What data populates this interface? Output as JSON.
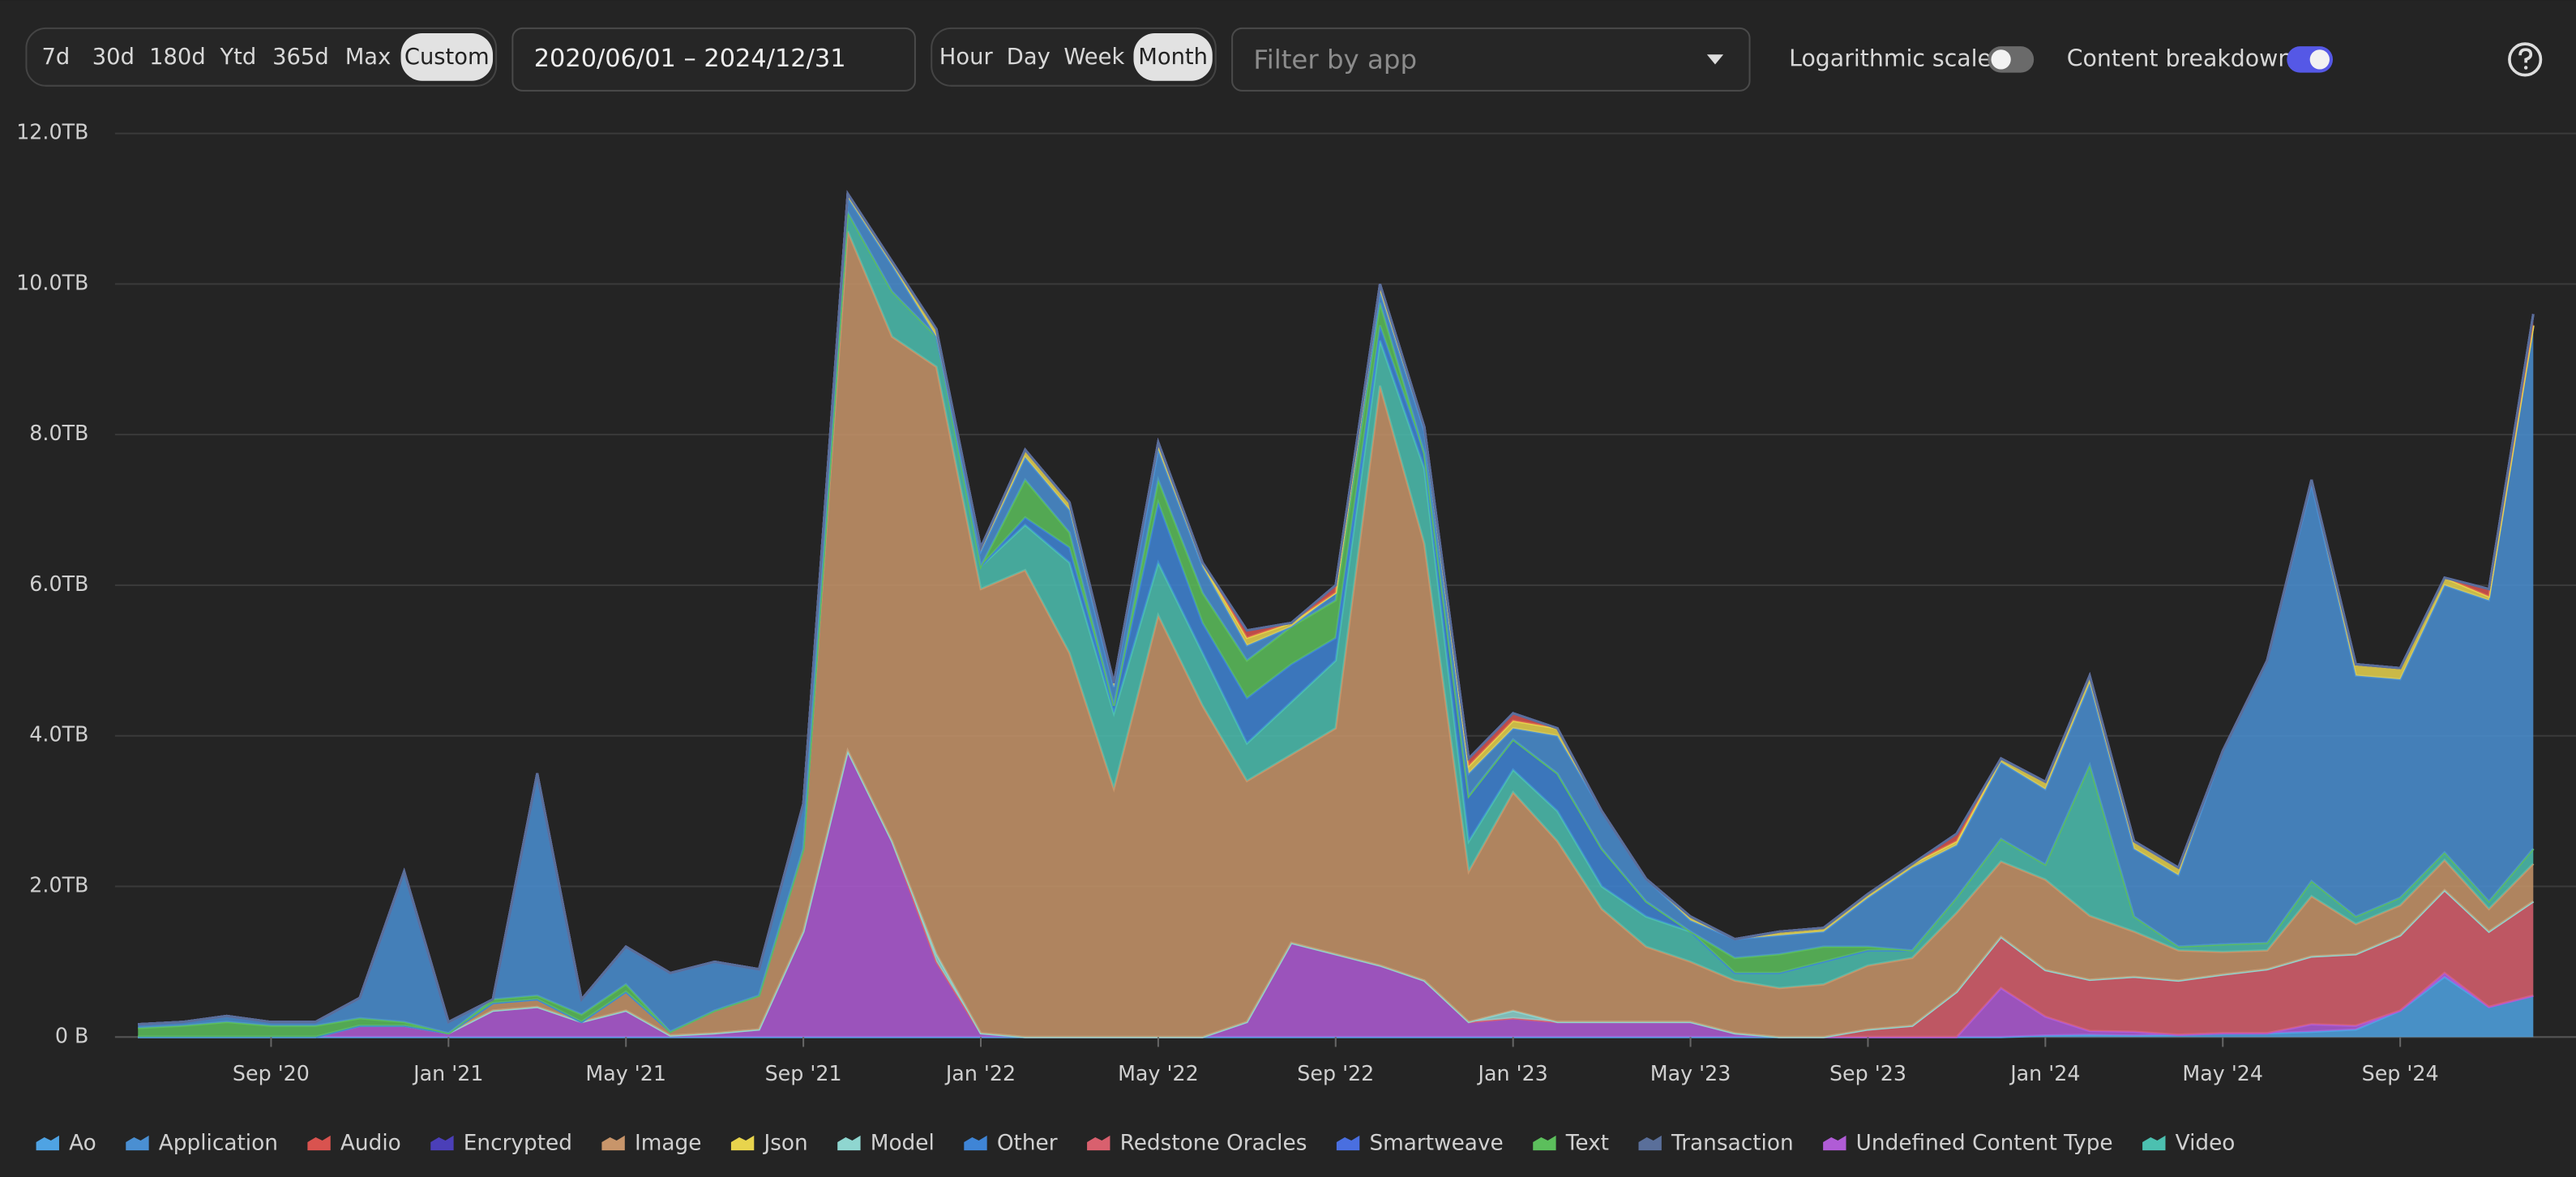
{
  "controls": {
    "ranges": [
      "7d",
      "30d",
      "180d",
      "Ytd",
      "365d",
      "Max",
      "Custom"
    ],
    "date_range": "2020/06/01 – 2024/12/31",
    "granularity": [
      "Hour",
      "Day",
      "Week",
      "Month"
    ],
    "filter_placeholder": "Filter by app",
    "log_toggle_label": "Logarithmic scale",
    "breakdown_toggle_label": "Content breakdown",
    "breakdown_on": true
  },
  "chart_data": {
    "type": "stacked_area",
    "log_scale": false,
    "grid": true,
    "ylim": [
      0,
      12
    ],
    "yticks": [
      {
        "value": 0,
        "label": "0 B"
      },
      {
        "value": 2,
        "label": "2.0TB"
      },
      {
        "value": 4,
        "label": "4.0TB"
      },
      {
        "value": 6,
        "label": "6.0TB"
      },
      {
        "value": 8,
        "label": "8.0TB"
      },
      {
        "value": 10,
        "label": "10.0TB"
      },
      {
        "value": 12,
        "label": "12.0TB"
      }
    ],
    "categories": [
      null,
      null,
      null,
      "Sep '20",
      null,
      null,
      null,
      "Jan '21",
      null,
      null,
      null,
      "May '21",
      null,
      null,
      null,
      "Sep '21",
      null,
      null,
      null,
      "Jan '22",
      null,
      null,
      null,
      "May '22",
      null,
      null,
      null,
      "Sep '22",
      null,
      null,
      null,
      "Jan '23",
      null,
      null,
      null,
      "May '23",
      null,
      null,
      null,
      "Sep '23",
      null,
      null,
      null,
      "Jan '24",
      null,
      null,
      null,
      "May '24",
      null,
      null,
      null,
      "Sep '24",
      null,
      null,
      null
    ],
    "series": [
      {
        "name": "Ao",
        "color": "#4fa3e3",
        "values": [
          0,
          0,
          0,
          0,
          0,
          0,
          0,
          0,
          0,
          0,
          0,
          0,
          0,
          0,
          0,
          0,
          0,
          0,
          0,
          0,
          0,
          0,
          0,
          0,
          0,
          0,
          0,
          0,
          0,
          0,
          0,
          0,
          0,
          0,
          0,
          0,
          0,
          0,
          0,
          0,
          0,
          0,
          0,
          0.02,
          0.03,
          0.02,
          0.03,
          0.05,
          0.05,
          0.07,
          0.1,
          0.35,
          0.8,
          0.4,
          0.55
        ]
      },
      {
        "name": "Application",
        "color": "#4a8fd2",
        "values": [
          0.05,
          0.05,
          0.08,
          0.05,
          0.05,
          0.27,
          2.0,
          0.15,
          0,
          2.95,
          0.2,
          0.5,
          0.78,
          0.65,
          0.35,
          0.6,
          0.2,
          0.35,
          0,
          0.2,
          0.3,
          0.3,
          0.25,
          0.4,
          0.35,
          0.2,
          0,
          0.1,
          0.15,
          0.3,
          0.3,
          0.15,
          0.5,
          0.5,
          0.3,
          0.15,
          0.25,
          0.25,
          0.2,
          0.65,
          1.1,
          0.7,
          1.02,
          1.0,
          1.09,
          0.9,
          0.95,
          2.57,
          3.75,
          5.28,
          3.2,
          2.9,
          3.55,
          4.0,
          6.95
        ]
      },
      {
        "name": "Audio",
        "color": "#d9534f",
        "values": [
          0,
          0,
          0,
          0,
          0,
          0,
          0,
          0,
          0,
          0,
          0,
          0,
          0,
          0,
          0,
          0,
          0,
          0,
          0,
          0,
          0,
          0,
          0,
          0,
          0,
          0.1,
          0,
          0.1,
          0,
          0,
          0.1,
          0.1,
          0,
          0,
          0,
          0,
          0,
          0,
          0,
          0,
          0,
          0.1,
          0,
          0,
          0,
          0,
          0,
          0,
          0,
          0,
          0,
          0,
          0,
          0.1,
          0.15
        ]
      },
      {
        "name": "Encrypted",
        "color": "#4b3fb8",
        "values": [
          0,
          0,
          0,
          0,
          0,
          0,
          0,
          0,
          0,
          0,
          0,
          0,
          0,
          0,
          0,
          0,
          0,
          0,
          0,
          0,
          0,
          0,
          0,
          0,
          0,
          0,
          0,
          0,
          0,
          0,
          0,
          0,
          0,
          0,
          0,
          0,
          0,
          0,
          0,
          0,
          0,
          0,
          0,
          0,
          0,
          0,
          0,
          0,
          0,
          0,
          0,
          0,
          0,
          0,
          0
        ]
      },
      {
        "name": "Image",
        "color": "#c8956a",
        "values": [
          0,
          0,
          0,
          0,
          0,
          0,
          0,
          0,
          0.1,
          0.1,
          0,
          0.25,
          0.05,
          0.3,
          0.45,
          1.1,
          6.9,
          6.7,
          7.8,
          5.9,
          6.2,
          5.1,
          3.3,
          5.6,
          4.4,
          3.2,
          2.5,
          3.0,
          7.7,
          5.8,
          2.0,
          2.9,
          2.4,
          1.5,
          1.0,
          0.8,
          0.7,
          0.65,
          0.7,
          0.85,
          0.9,
          1.05,
          1.0,
          1.2,
          0.85,
          0.6,
          0.4,
          0.3,
          0.25,
          0.8,
          0.4,
          0.4,
          0.4,
          0.3,
          0.5
        ]
      },
      {
        "name": "Json",
        "color": "#e8d44d",
        "values": [
          0,
          0,
          0,
          0,
          0,
          0,
          0,
          0,
          0,
          0,
          0,
          0,
          0,
          0,
          0,
          0,
          0.05,
          0.05,
          0.1,
          0.05,
          0.1,
          0.1,
          0.05,
          0.1,
          0.05,
          0.1,
          0.05,
          0,
          0.1,
          0.05,
          0.1,
          0.1,
          0.1,
          0,
          0,
          0.05,
          0,
          0.05,
          0.05,
          0.05,
          0.05,
          0.05,
          0.05,
          0.1,
          0.1,
          0.1,
          0.1,
          0,
          0,
          0.05,
          0.15,
          0.15,
          0.1,
          0.05,
          0
        ]
      },
      {
        "name": "Model",
        "color": "#8fd6d0",
        "values": [
          0,
          0,
          0,
          0,
          0,
          0,
          0,
          0,
          0,
          0,
          0,
          0,
          0,
          0,
          0,
          0,
          0,
          0,
          0.1,
          0,
          0,
          0,
          0,
          0,
          0,
          0,
          0,
          0,
          0,
          0,
          0,
          0.1,
          0,
          0,
          0,
          0,
          0,
          0,
          0,
          0,
          0,
          0,
          0,
          0,
          0,
          0,
          0,
          0,
          0,
          0,
          0,
          0,
          0,
          0,
          0
        ]
      },
      {
        "name": "Other",
        "color": "#3f85d6",
        "values": [
          0,
          0,
          0,
          0,
          0,
          0,
          0,
          0,
          0,
          0,
          0,
          0,
          0,
          0,
          0,
          0,
          0,
          0,
          0,
          0,
          0.1,
          0.2,
          0.1,
          0.8,
          0.4,
          0.6,
          0.5,
          0.3,
          0.2,
          0.2,
          0.6,
          0.4,
          0.5,
          0.5,
          0.2,
          0,
          0,
          0,
          0,
          0,
          0,
          0,
          0,
          0,
          0,
          0,
          0,
          0,
          0,
          0,
          0,
          0,
          0,
          0,
          0
        ]
      },
      {
        "name": "Redstone Oracles",
        "color": "#d9606e",
        "values": [
          0,
          0,
          0,
          0,
          0,
          0,
          0,
          0,
          0,
          0,
          0,
          0,
          0,
          0,
          0,
          0,
          0,
          0,
          0,
          0,
          0,
          0,
          0,
          0,
          0,
          0,
          0,
          0,
          0,
          0,
          0,
          0,
          0,
          0,
          0,
          0,
          0,
          0,
          0,
          0.1,
          0.15,
          0.6,
          0.68,
          0.62,
          0.68,
          0.73,
          0.72,
          0.78,
          0.85,
          0.9,
          0.95,
          1.0,
          1.1,
          1.0,
          1.25
        ]
      },
      {
        "name": "Smartweave",
        "color": "#4a6fe0",
        "values": [
          0,
          0,
          0,
          0,
          0,
          0,
          0,
          0,
          0,
          0,
          0,
          0,
          0,
          0,
          0,
          0,
          0,
          0,
          0,
          0,
          0,
          0,
          0,
          0,
          0,
          0,
          0,
          0,
          0,
          0,
          0,
          0,
          0,
          0,
          0,
          0,
          0,
          0,
          0,
          0,
          0,
          0,
          0,
          0,
          0,
          0,
          0,
          0,
          0,
          0,
          0,
          0,
          0,
          0,
          0
        ]
      },
      {
        "name": "Text",
        "color": "#5cbf5c",
        "values": [
          0.12,
          0.15,
          0.2,
          0.15,
          0.15,
          0.1,
          0.05,
          0,
          0.05,
          0.05,
          0.1,
          0.1,
          0,
          0,
          0,
          0,
          0,
          0,
          0,
          0,
          0.5,
          0.2,
          0,
          0.3,
          0.4,
          0.5,
          0.5,
          0.5,
          0.3,
          0,
          0,
          0,
          0,
          0,
          0,
          0,
          0.2,
          0.25,
          0.2,
          0.05,
          0,
          0,
          0,
          0,
          0,
          0,
          0,
          0,
          0,
          0,
          0,
          0,
          0,
          0,
          0
        ]
      },
      {
        "name": "Transaction",
        "color": "#5a6f9a",
        "values": [
          0,
          0,
          0,
          0,
          0,
          0,
          0,
          0,
          0,
          0,
          0,
          0,
          0,
          0,
          0,
          0,
          0,
          0,
          0,
          0,
          0,
          0,
          0,
          0,
          0,
          0,
          0,
          0,
          0,
          0,
          0,
          0,
          0,
          0,
          0,
          0,
          0,
          0,
          0,
          0,
          0,
          0,
          0,
          0,
          0,
          0,
          0,
          0,
          0,
          0,
          0,
          0,
          0,
          0,
          0
        ]
      },
      {
        "name": "Undefined Content Type",
        "color": "#b05cd6",
        "values": [
          0,
          0,
          0,
          0,
          0,
          0.15,
          0.15,
          0.05,
          0.35,
          0.4,
          0.2,
          0.35,
          0.02,
          0.05,
          0.1,
          1.4,
          3.8,
          2.6,
          1.0,
          0.05,
          0,
          0,
          0,
          0,
          0,
          0.2,
          1.25,
          1.1,
          0.95,
          0.75,
          0.2,
          0.25,
          0.2,
          0.2,
          0.2,
          0.2,
          0.05,
          0,
          0,
          0,
          0,
          0,
          0.65,
          0.25,
          0.05,
          0.05,
          0,
          0,
          0,
          0.1,
          0.05,
          0,
          0.05,
          0,
          0
        ]
      },
      {
        "name": "Video",
        "color": "#4cc0b0",
        "values": [
          0,
          0,
          0,
          0,
          0,
          0,
          0,
          0,
          0,
          0,
          0,
          0,
          0,
          0,
          0,
          0,
          0.25,
          0.6,
          0.4,
          0.3,
          0.6,
          1.2,
          1.0,
          0.7,
          0.7,
          0.5,
          0.7,
          0.9,
          0.6,
          1.0,
          0.4,
          0.3,
          0.4,
          0.3,
          0.4,
          0.4,
          0.1,
          0.2,
          0.3,
          0.2,
          0.1,
          0.2,
          0.3,
          0.2,
          2.0,
          0.2,
          0.05,
          0.1,
          0.1,
          0.2,
          0.1,
          0.1,
          0.1,
          0.1,
          0.2
        ]
      }
    ]
  }
}
